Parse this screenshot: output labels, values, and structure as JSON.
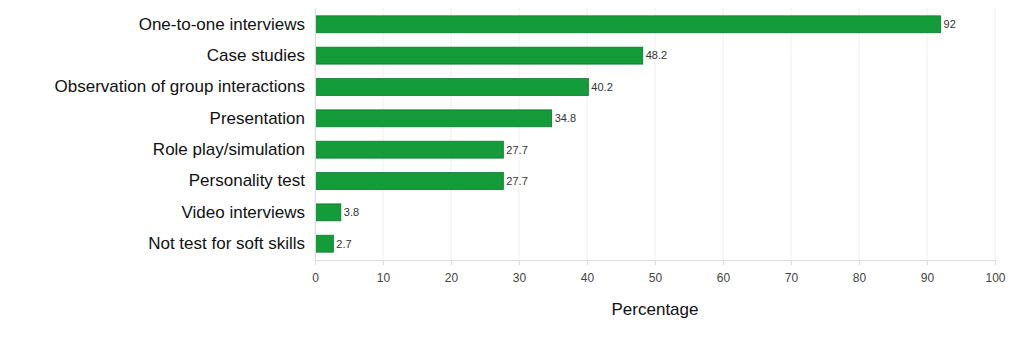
{
  "chart_data": {
    "type": "bar",
    "orientation": "horizontal",
    "categories": [
      "One-to-one interviews",
      "Case studies",
      "Observation of group interactions",
      "Presentation",
      "Role play/simulation",
      "Personality test",
      "Video interviews",
      "Not test for soft skills"
    ],
    "values": [
      92,
      48.2,
      40.2,
      34.8,
      27.7,
      27.7,
      3.8,
      2.7
    ],
    "color": "#149b3a",
    "x_label": "Percentage",
    "xlim": [
      0,
      100
    ],
    "xticks": [
      0,
      10,
      20,
      30,
      40,
      50,
      60,
      70,
      80,
      90,
      100
    ],
    "grid": true,
    "data_labels": true
  }
}
